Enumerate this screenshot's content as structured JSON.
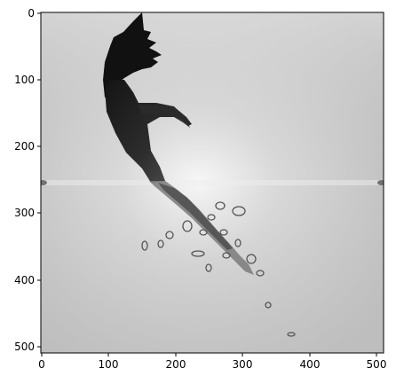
{
  "image": {
    "description_free": true,
    "colormap": "grayscale",
    "background_colors": [
      "#e6e6e6",
      "#b4b4b4",
      "#f4f4f4"
    ],
    "subject_color": "#1c1c1c"
  },
  "axes": {
    "x_ticks": [
      "0",
      "100",
      "200",
      "300",
      "400",
      "500"
    ],
    "y_ticks": [
      "0",
      "100",
      "200",
      "300",
      "400",
      "500"
    ],
    "x_range": [
      0,
      512
    ],
    "y_range": [
      512,
      0
    ]
  }
}
